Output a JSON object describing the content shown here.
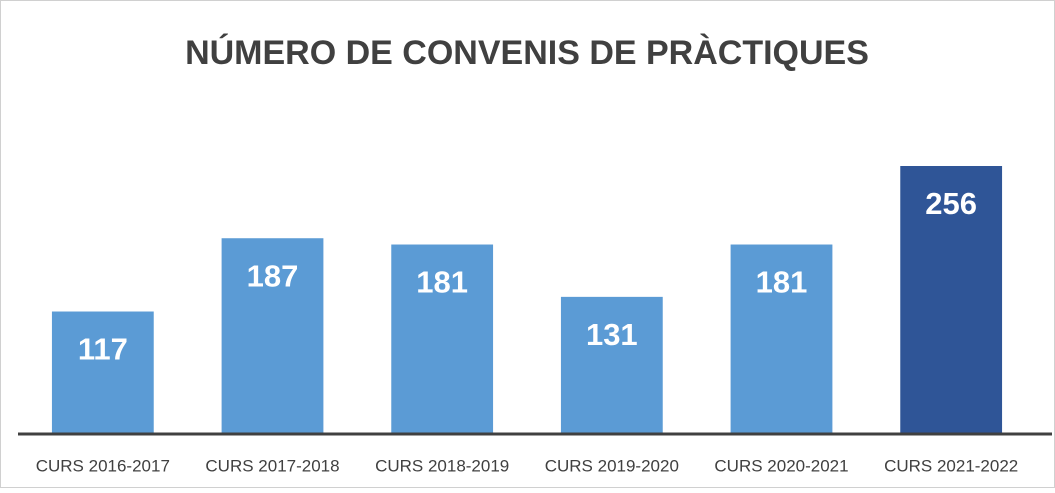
{
  "chart_data": {
    "type": "bar",
    "title": "NÚMERO DE CONVENIS DE PRÀCTIQUES",
    "categories": [
      "CURS 2016-2017",
      "CURS 2017-2018",
      "CURS 2018-2019",
      "CURS 2019-2020",
      "CURS 2020-2021",
      "CURS 2021-2022"
    ],
    "values": [
      117,
      187,
      181,
      131,
      181,
      256
    ],
    "colors": [
      "#5b9bd5",
      "#5b9bd5",
      "#5b9bd5",
      "#5b9bd5",
      "#5b9bd5",
      "#2f5597"
    ]
  }
}
